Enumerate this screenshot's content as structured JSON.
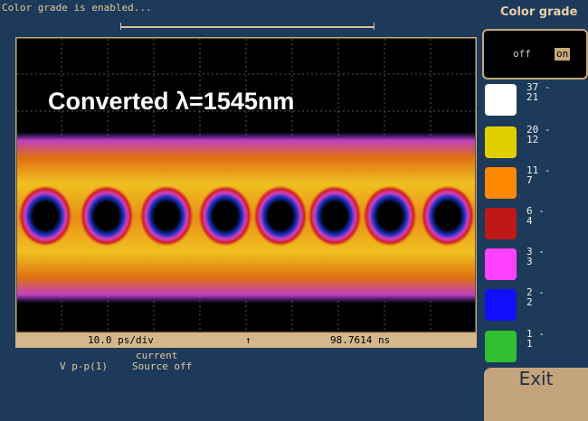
{
  "status": "Color grade is enabled...",
  "panel_title": "Color grade",
  "toggle": {
    "off": "off",
    "on": "on"
  },
  "screen": {
    "annotation": "Converted λ=1545nm",
    "timebase": "10.0 ps/div",
    "marker": "↑",
    "position": "98.7614 ns"
  },
  "readout": {
    "label": "current",
    "measurement": "V p-p(1)",
    "source": "Source off"
  },
  "legend": [
    {
      "upper": "37 -",
      "lower": "21"
    },
    {
      "upper": "20 -",
      "lower": "12"
    },
    {
      "upper": "11 -",
      "lower": "7"
    },
    {
      "upper": "6 -",
      "lower": "4"
    },
    {
      "upper": "3 -",
      "lower": "3"
    },
    {
      "upper": "2 -",
      "lower": "2"
    },
    {
      "upper": "1 -",
      "lower": "1"
    }
  ],
  "exit": "Exit"
}
